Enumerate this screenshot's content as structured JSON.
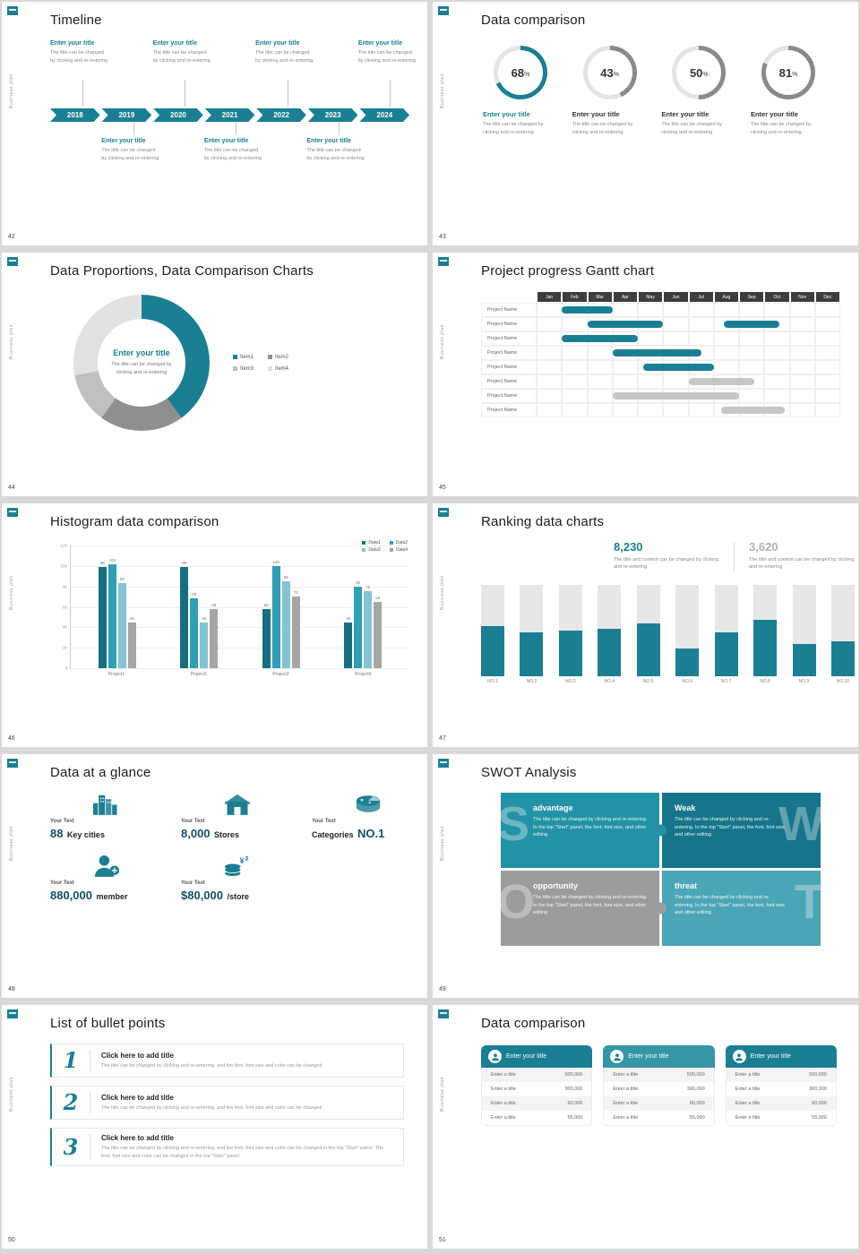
{
  "theme": {
    "accent": "#1b7f93",
    "gray_ring": "#8a8a8a",
    "track": "#e4e4e4",
    "gray_bar": "#c6c6c6",
    "stat_gray": "#b0b0b0"
  },
  "sidebar": {
    "vertical_text": "Business plan"
  },
  "slides": {
    "timeline": {
      "number": "42",
      "title": "Timeline",
      "years": [
        "2018",
        "2019",
        "2020",
        "2021",
        "2022",
        "2023",
        "2024"
      ],
      "top_indices": [
        0,
        2,
        4,
        6
      ],
      "bottom_indices": [
        1,
        3,
        5
      ],
      "entry_title": "Enter your title",
      "entry_desc": "The title can be changed by clicking and re-entering"
    },
    "circles": {
      "number": "43",
      "title": "Data comparison",
      "item_title": "Enter your title",
      "item_desc": "The title can be changed by clicking and re-entering",
      "percent_sign": "%",
      "items": [
        {
          "value": 68,
          "accent": true
        },
        {
          "value": 43,
          "accent": false
        },
        {
          "value": 50,
          "accent": false
        },
        {
          "value": 81,
          "accent": false
        }
      ]
    },
    "donut": {
      "number": "44",
      "title": "Data Proportions, Data Comparison Charts",
      "center_title": "Enter your title",
      "center_desc": "The title can be changed by clicking and re-entering",
      "segments": [
        {
          "label": "Item1",
          "value": 40,
          "color": "#1b7f93"
        },
        {
          "label": "Item2",
          "value": 20,
          "color": "#8f8f8f"
        },
        {
          "label": "Item3",
          "value": 12,
          "color": "#bfbfbf"
        },
        {
          "label": "Item4",
          "value": 28,
          "color": "#e2e2e2"
        }
      ]
    },
    "gantt": {
      "number": "45",
      "title": "Project progress Gantt chart",
      "months": [
        "Jan",
        "Feb",
        "Mar",
        "Apr",
        "May",
        "Jun",
        "Jul",
        "Aug",
        "Sep",
        "Oct",
        "Nov",
        "Dec"
      ],
      "row_label": "Project Name",
      "row_count": 8,
      "bars": [
        {
          "row": 0,
          "start": 1,
          "end": 3,
          "color": "accent"
        },
        {
          "row": 1,
          "start": 2,
          "end": 5,
          "color": "accent"
        },
        {
          "row": 1,
          "start": 7.4,
          "end": 9.6,
          "color": "accent"
        },
        {
          "row": 2,
          "start": 1,
          "end": 4,
          "color": "accent"
        },
        {
          "row": 3,
          "start": 3,
          "end": 6.5,
          "color": "accent"
        },
        {
          "row": 4,
          "start": 4.2,
          "end": 7,
          "color": "accent"
        },
        {
          "row": 5,
          "start": 6,
          "end": 8.6,
          "color": "gray"
        },
        {
          "row": 6,
          "start": 3,
          "end": 8,
          "color": "gray"
        },
        {
          "row": 7,
          "start": 7.3,
          "end": 9.8,
          "color": "gray"
        }
      ]
    },
    "histogram": {
      "number": "46",
      "title": "Histogram data comparison",
      "categories": [
        "Project1",
        "Project2",
        "Project3",
        "Project4"
      ],
      "ymax": 120,
      "ystep": 20,
      "series": [
        {
          "name": "Data1",
          "color": "#156f81",
          "values": [
            99,
            99,
            58,
            45
          ]
        },
        {
          "name": "Data2",
          "color": "#2e9fb4",
          "values": [
            102,
            68,
            100,
            80
          ]
        },
        {
          "name": "Data3",
          "color": "#82c4d4",
          "values": [
            83,
            45,
            85,
            75
          ]
        },
        {
          "name": "Data4",
          "color": "#a6a6a6",
          "values": [
            45,
            58,
            70,
            65
          ]
        }
      ]
    },
    "ranking": {
      "number": "47",
      "title": "Ranking data charts",
      "stats": [
        {
          "value": "8,230",
          "desc": "The title and content can be changed by clicking and re-entering",
          "accent": true
        },
        {
          "value": "3,620",
          "desc": "The title and content can be changed by clicking and re-entering",
          "accent": false
        }
      ],
      "categories": [
        "NO.1",
        "NO.2",
        "NO.3",
        "NO.4",
        "NO.5",
        "NO.6",
        "NO.7",
        "NO.8",
        "NO.9",
        "NO.10"
      ],
      "values": [
        55,
        48,
        50,
        52,
        58,
        30,
        48,
        62,
        35,
        38
      ],
      "max": 100
    },
    "glance": {
      "number": "48",
      "title": "Data at a glance",
      "label": "Your Text",
      "items": [
        {
          "icon": "city-icon",
          "num": "88",
          "word": "Key cities",
          "num_first": true
        },
        {
          "icon": "store-icon",
          "num": "8,000",
          "word": "Stores",
          "num_first": true
        },
        {
          "icon": "categories-icon",
          "num": "NO.1",
          "word": "Categories",
          "num_first": false
        },
        {
          "icon": "member-icon",
          "num": "880,000",
          "word": "member",
          "num_first": true
        },
        {
          "icon": "coins-icon",
          "num": "$80,000",
          "word": "/store",
          "num_first": true
        }
      ]
    },
    "swot": {
      "number": "49",
      "title": "SWOT Analysis",
      "desc": "The title can be changed by clicking and re-entering. In the top \"Start\" panel, the font, font size, and other editing",
      "quads": [
        {
          "letter": "S",
          "title": "advantage",
          "color": "#2292a6",
          "side": "left"
        },
        {
          "letter": "W",
          "title": "Weak",
          "color": "#16758a",
          "side": "right"
        },
        {
          "letter": "O",
          "title": "opportunity",
          "color": "#9c9c9c",
          "side": "left"
        },
        {
          "letter": "T",
          "title": "threat",
          "color": "#4aa5b6",
          "side": "right"
        }
      ]
    },
    "bullets": {
      "number": "50",
      "title": "List of bullet points",
      "items": [
        {
          "num": "1",
          "title": "Click here to add title",
          "desc": "The title can be changed by clicking and re-entering, and the font, font size and color can be changed"
        },
        {
          "num": "2",
          "title": "Click here to add title",
          "desc": "The title can be changed by clicking and re-entering, and the font, font size and color can be changed"
        },
        {
          "num": "3",
          "title": "Click here to add title",
          "desc": "The title can be changed by clicking and re-entering, and the font, font size and color can be changed in the top \"Start\" panel. The font, font size and color can be changed in the top \"Start\" panel."
        }
      ]
    },
    "tables": {
      "number": "51",
      "title": "Data comparison",
      "row_label": "Enter a title",
      "values": [
        "500,000",
        "300,000",
        "60,000",
        "55,000"
      ],
      "cards": [
        {
          "header": "Enter your title",
          "color": "#1b7f93"
        },
        {
          "header": "Enter your title",
          "color": "#3596a8"
        },
        {
          "header": "Enter your title",
          "color": "#1b7f93"
        }
      ]
    }
  }
}
